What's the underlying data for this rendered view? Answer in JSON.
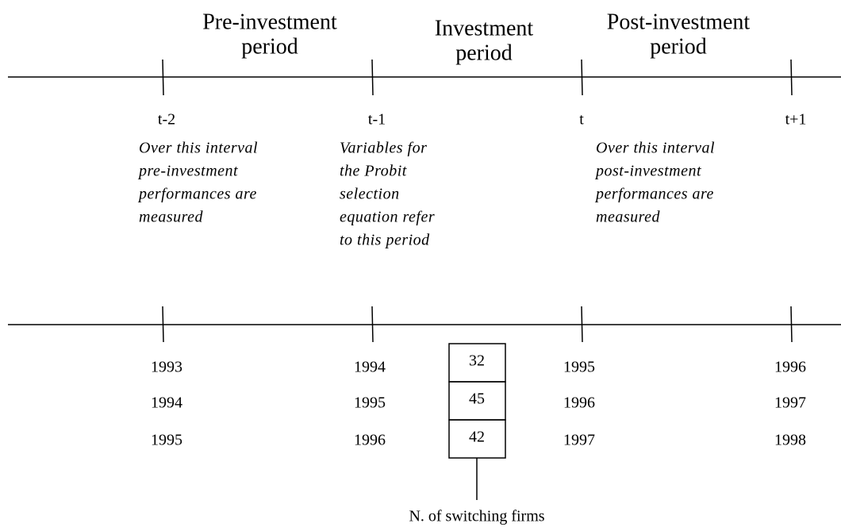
{
  "periods": [
    {
      "title": [
        "Pre-investment",
        "period"
      ]
    },
    {
      "title": [
        "Investment",
        "period"
      ]
    },
    {
      "title": [
        "Post-investment",
        "period"
      ]
    }
  ],
  "tick_labels": [
    "t-2",
    "t-1",
    "t",
    "t+1"
  ],
  "notes": [
    [
      "Over this interval",
      "pre-investment",
      "performances are",
      "measured"
    ],
    [
      "Variables for",
      "the Probit",
      "selection",
      "equation refer",
      "to this period"
    ],
    [
      "Over this interval",
      "post-investment",
      "performances are",
      "measured"
    ]
  ],
  "year_rows": [
    [
      1993,
      1994,
      1995,
      1996
    ],
    [
      1994,
      1995,
      1996,
      1997
    ],
    [
      1995,
      1996,
      1997,
      1998
    ]
  ],
  "switching_firms": {
    "counts": [
      32,
      45,
      42
    ],
    "caption": "N. of switching firms"
  }
}
